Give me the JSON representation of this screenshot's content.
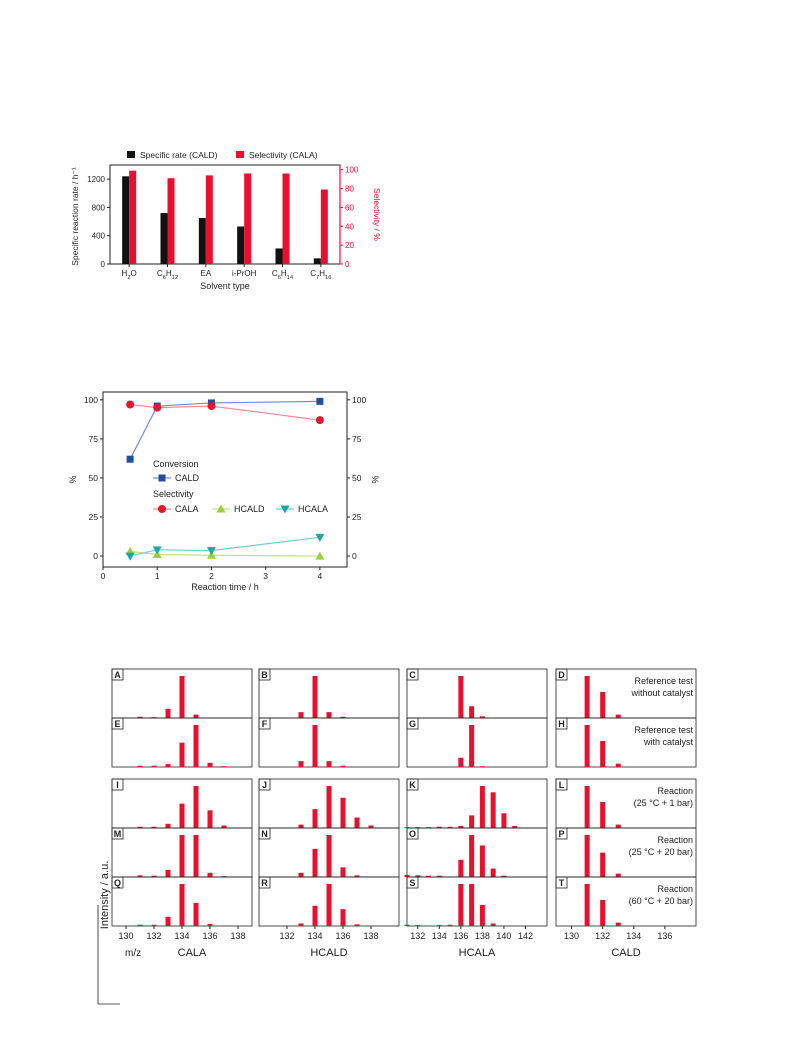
{
  "chart_data": [
    {
      "type": "bar",
      "panel": "solvent",
      "categories": [
        "H2O",
        "C6H12",
        "EA",
        "i-PrOH",
        "C6H14",
        "C7H16"
      ],
      "category_labels": [
        [
          {
            "t": "H"
          },
          {
            "t": "2",
            "sub": true
          },
          {
            "t": "O"
          }
        ],
        [
          {
            "t": "C"
          },
          {
            "t": "6",
            "sub": true
          },
          {
            "t": "H"
          },
          {
            "t": "12",
            "sub": true
          }
        ],
        [
          {
            "t": "EA"
          }
        ],
        [
          {
            "t": "i-PrOH"
          }
        ],
        [
          {
            "t": "C"
          },
          {
            "t": "6",
            "sub": true
          },
          {
            "t": "H"
          },
          {
            "t": "14",
            "sub": true
          }
        ],
        [
          {
            "t": "C"
          },
          {
            "t": "7",
            "sub": true
          },
          {
            "t": "H"
          },
          {
            "t": "16",
            "sub": true
          }
        ]
      ],
      "series": [
        {
          "name": "Specific rate (CALD)",
          "axis": "left",
          "color": "#111111",
          "values": [
            1240,
            720,
            650,
            530,
            220,
            80
          ]
        },
        {
          "name": "Selectivity (CALA)",
          "axis": "right",
          "color": "#e8112d",
          "values": [
            99,
            91,
            94,
            96,
            96,
            79
          ]
        }
      ],
      "xlabel": "Solvent type",
      "ylabel": "Specific reaction rate / h⁻¹",
      "ylabel_right": "Selectivity / %",
      "ylim": [
        0,
        1400
      ],
      "yticks": [
        0,
        400,
        800,
        1200
      ],
      "ylim_right": [
        0,
        105
      ],
      "yticks_right": [
        0,
        20,
        40,
        60,
        80,
        100
      ],
      "legend": "top"
    },
    {
      "type": "line",
      "panel": "time",
      "xlabel": "Reaction time / h",
      "ylabel": "%",
      "ylabel_right": "%",
      "xlim": [
        0,
        4.5
      ],
      "xticks": [
        0,
        1,
        2,
        3,
        4
      ],
      "ylim": [
        -7,
        105
      ],
      "yticks": [
        0,
        25,
        50,
        75,
        100
      ],
      "legend_groups": [
        "Conversion",
        "Selectivity"
      ],
      "series": [
        {
          "name": "CALD",
          "group": "Conversion",
          "marker": "square",
          "line_color": "#6f8fd0",
          "marker_color": "#1f4f9e",
          "x": [
            0.5,
            1,
            2,
            4
          ],
          "y": [
            62,
            96,
            98,
            99
          ]
        },
        {
          "name": "CALA",
          "group": "Selectivity",
          "marker": "circle",
          "line_color": "#f28a9a",
          "marker_color": "#e5172f",
          "x": [
            0.5,
            1,
            2,
            4
          ],
          "y": [
            97,
            95,
            96,
            87
          ]
        },
        {
          "name": "HCALD",
          "group": "Selectivity",
          "marker": "triangle-up",
          "line_color": "#c4dd8c",
          "marker_color": "#9ccf3c",
          "x": [
            0.5,
            1,
            2,
            4
          ],
          "y": [
            3,
            1,
            0.5,
            0
          ]
        },
        {
          "name": "HCALA",
          "group": "Selectivity",
          "marker": "triangle-down",
          "line_color": "#6fcfcc",
          "marker_color": "#1aa7a6",
          "x": [
            0.5,
            1,
            2,
            4
          ],
          "y": [
            0,
            4,
            3.5,
            12
          ]
        }
      ]
    },
    {
      "type": "bar",
      "panel": "mass-spectra",
      "ylabel": "Intensity / a.u.",
      "xunit": "m/z",
      "columns": [
        {
          "title": "CALA",
          "xmin": 129,
          "xmax": 139,
          "ticks": [
            130,
            132,
            134,
            136,
            138
          ]
        },
        {
          "title": "HCALD",
          "xmin": 130,
          "xmax": 140,
          "ticks": [
            132,
            134,
            136,
            138
          ]
        },
        {
          "title": "HCALA",
          "xmin": 131,
          "xmax": 144,
          "ticks": [
            132,
            134,
            136,
            138,
            140,
            142
          ]
        },
        {
          "title": "CALD",
          "xmin": 129,
          "xmax": 138,
          "ticks": [
            130,
            132,
            134,
            136
          ]
        }
      ],
      "row_groups": [
        "reference",
        "reference",
        "reaction",
        "reaction",
        "reaction"
      ],
      "rows": [
        {
          "label": [
            "Reference test",
            "without catalyst"
          ]
        },
        {
          "label": [
            "Reference test",
            "with catalyst"
          ]
        },
        {
          "label": [
            "Reaction",
            "(25 °C + 1 bar)"
          ]
        },
        {
          "label": [
            "Reaction",
            "(25 °C + 20 bar)"
          ]
        },
        {
          "label": [
            "Reaction",
            "(60 °C + 20 bar)"
          ]
        }
      ],
      "panels": [
        {
          "letter": "A",
          "row": 0,
          "col": 0,
          "bars": [
            [
              131,
              3
            ],
            [
              132,
              2
            ],
            [
              133,
              22
            ],
            [
              134,
              100
            ],
            [
              135,
              8
            ]
          ]
        },
        {
          "letter": "B",
          "row": 0,
          "col": 1,
          "bars": [
            [
              132,
              1
            ],
            [
              133,
              14
            ],
            [
              134,
              100
            ],
            [
              135,
              14
            ],
            [
              136,
              3
            ]
          ]
        },
        {
          "letter": "C",
          "row": 0,
          "col": 2,
          "bars": [
            [
              136,
              100
            ],
            [
              137,
              28
            ],
            [
              138,
              4
            ]
          ]
        },
        {
          "letter": "D",
          "row": 0,
          "col": 3,
          "bars": [
            [
              131,
              100
            ],
            [
              132,
              62
            ],
            [
              133,
              8
            ]
          ]
        },
        {
          "letter": "E",
          "row": 1,
          "col": 0,
          "bars": [
            [
              131,
              3
            ],
            [
              132,
              3
            ],
            [
              133,
              7
            ],
            [
              134,
              58
            ],
            [
              135,
              100
            ],
            [
              136,
              10
            ],
            [
              137,
              2
            ]
          ]
        },
        {
          "letter": "F",
          "row": 1,
          "col": 1,
          "bars": [
            [
              133,
              14
            ],
            [
              134,
              100
            ],
            [
              135,
              14
            ],
            [
              136,
              3
            ]
          ]
        },
        {
          "letter": "G",
          "row": 1,
          "col": 2,
          "bars": [
            [
              136,
              22
            ],
            [
              137,
              100
            ],
            [
              138,
              2
            ]
          ]
        },
        {
          "letter": "H",
          "row": 1,
          "col": 3,
          "bars": [
            [
              131,
              100
            ],
            [
              132,
              62
            ],
            [
              133,
              8
            ]
          ]
        },
        {
          "letter": "I",
          "row": 2,
          "col": 0,
          "bars": [
            [
              131,
              3
            ],
            [
              132,
              3
            ],
            [
              133,
              10
            ],
            [
              134,
              58
            ],
            [
              135,
              100
            ],
            [
              136,
              42
            ],
            [
              137,
              6
            ]
          ]
        },
        {
          "letter": "J",
          "row": 2,
          "col": 1,
          "bars": [
            [
              133,
              8
            ],
            [
              134,
              45
            ],
            [
              135,
              100
            ],
            [
              136,
              72
            ],
            [
              137,
              25
            ],
            [
              138,
              6
            ]
          ]
        },
        {
          "letter": "K",
          "row": 2,
          "col": 2,
          "bars": [
            [
              131,
              2
            ],
            [
              132,
              2
            ],
            [
              133,
              2
            ],
            [
              134,
              3
            ],
            [
              135,
              3
            ],
            [
              136,
              5
            ],
            [
              137,
              30
            ],
            [
              138,
              100
            ],
            [
              139,
              85
            ],
            [
              140,
              35
            ],
            [
              141,
              5
            ]
          ]
        },
        {
          "letter": "L",
          "row": 2,
          "col": 3,
          "bars": [
            [
              131,
              100
            ],
            [
              132,
              62
            ],
            [
              133,
              8
            ]
          ]
        },
        {
          "letter": "M",
          "row": 3,
          "col": 0,
          "bars": [
            [
              131,
              4
            ],
            [
              132,
              3
            ],
            [
              133,
              17
            ],
            [
              134,
              100
            ],
            [
              135,
              100
            ],
            [
              136,
              10
            ],
            [
              137,
              2
            ]
          ]
        },
        {
          "letter": "N",
          "row": 3,
          "col": 1,
          "bars": [
            [
              133,
              10
            ],
            [
              134,
              67
            ],
            [
              135,
              100
            ],
            [
              136,
              23
            ],
            [
              137,
              4
            ]
          ]
        },
        {
          "letter": "O",
          "row": 3,
          "col": 2,
          "bars": [
            [
              131,
              5
            ],
            [
              132,
              4
            ],
            [
              133,
              3
            ],
            [
              134,
              3
            ],
            [
              136,
              41
            ],
            [
              137,
              100
            ],
            [
              138,
              75
            ],
            [
              139,
              20
            ],
            [
              140,
              3
            ]
          ]
        },
        {
          "letter": "P",
          "row": 3,
          "col": 3,
          "bars": [
            [
              131,
              100
            ],
            [
              132,
              58
            ],
            [
              133,
              8
            ]
          ]
        },
        {
          "letter": "Q",
          "row": 4,
          "col": 0,
          "bars": [
            [
              131,
              3
            ],
            [
              132,
              3
            ],
            [
              133,
              22
            ],
            [
              134,
              100
            ],
            [
              135,
              55
            ],
            [
              136,
              5
            ]
          ]
        },
        {
          "letter": "R",
          "row": 4,
          "col": 1,
          "bars": [
            [
              133,
              6
            ],
            [
              134,
              48
            ],
            [
              135,
              100
            ],
            [
              136,
              40
            ],
            [
              137,
              4
            ]
          ]
        },
        {
          "letter": "S",
          "row": 4,
          "col": 2,
          "bars": [
            [
              131,
              3
            ],
            [
              132,
              2
            ],
            [
              134,
              2
            ],
            [
              135,
              3
            ],
            [
              136,
              100
            ],
            [
              137,
              100
            ],
            [
              138,
              50
            ],
            [
              139,
              6
            ]
          ]
        },
        {
          "letter": "T",
          "row": 4,
          "col": 3,
          "bars": [
            [
              131,
              100
            ],
            [
              132,
              62
            ],
            [
              133,
              8
            ]
          ]
        }
      ]
    }
  ]
}
